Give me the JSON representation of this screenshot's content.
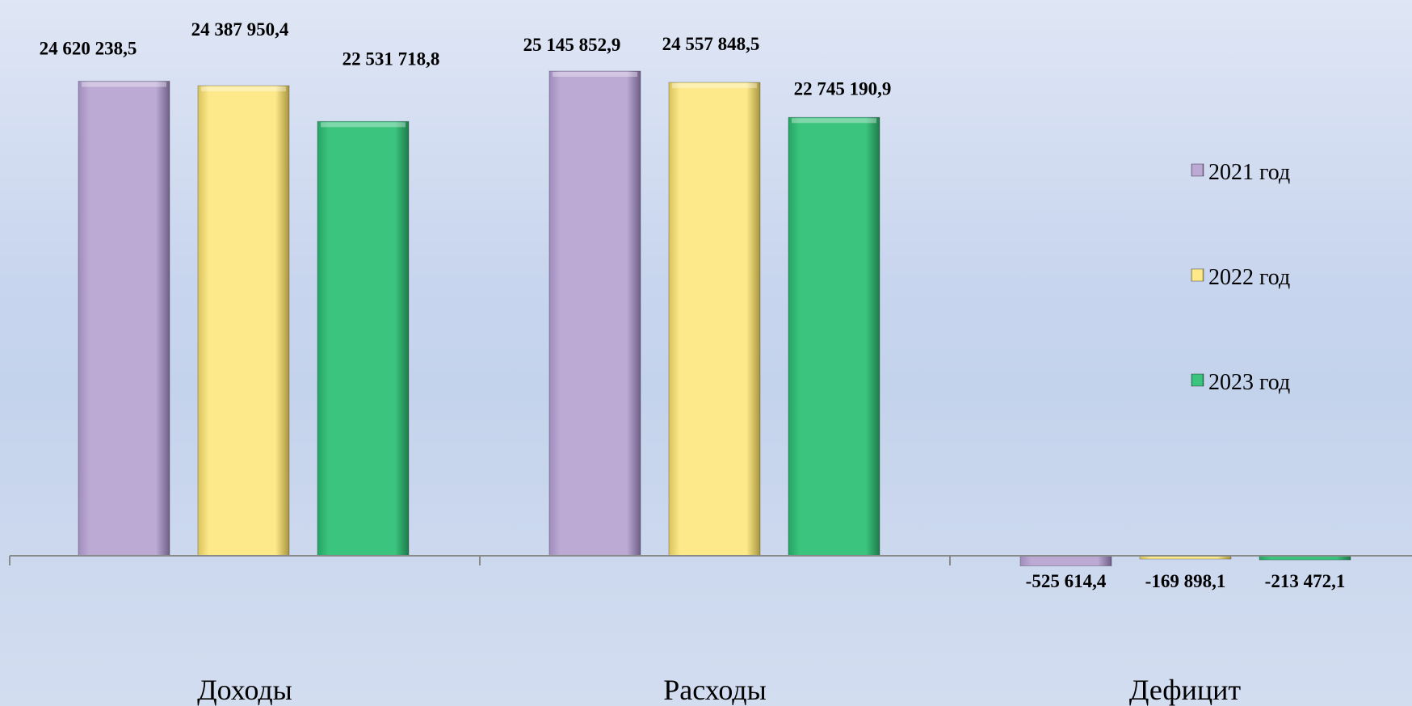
{
  "chart_data": {
    "type": "bar",
    "categories": [
      "Доходы",
      "Расходы",
      "Дефицит"
    ],
    "series": [
      {
        "name": "2021 год",
        "color": "#bcaad4",
        "values": [
          24620238.5,
          25145852.9,
          -525614.4
        ],
        "labels": [
          "24 620 238,5",
          "25 145 852,9",
          "-525 614,4"
        ]
      },
      {
        "name": "2022 год",
        "color": "#fde98a",
        "values": [
          24387950.4,
          24557848.5,
          -169898.1
        ],
        "labels": [
          "24 387 950,4",
          "24 557 848,5",
          "-169 898,1"
        ]
      },
      {
        "name": "2023 год",
        "color": "#3ac47d",
        "values": [
          22531718.8,
          22745190.9,
          -213472.1
        ],
        "labels": [
          "22 531 718,8",
          "22 745 190,9",
          "-213 472,1"
        ]
      }
    ],
    "legend_position": "right",
    "grid": false,
    "data_labels": true
  }
}
